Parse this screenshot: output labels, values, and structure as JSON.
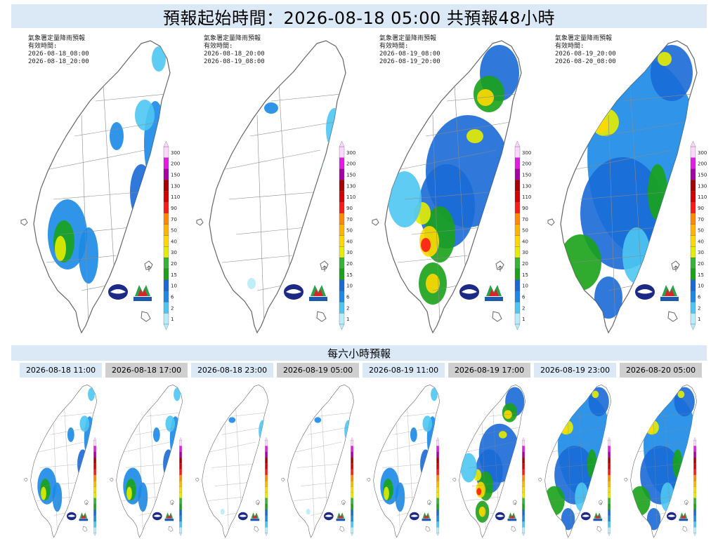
{
  "header": {
    "title": "預報起始時間：2026-08-18 05:00  共預報48小時"
  },
  "legend": {
    "levels": [
      "300",
      "200",
      "150",
      "130",
      "110",
      "90",
      "70",
      "50",
      "40",
      "30",
      "20",
      "15",
      "10",
      "6",
      "2",
      "1"
    ],
    "colors": [
      "#fdd5fd",
      "#e51ae5",
      "#a800a8",
      "#a80000",
      "#d60000",
      "#ff1a1a",
      "#ff8a00",
      "#ffb400",
      "#ffd800",
      "#e6ec00",
      "#34b534",
      "#1aa21a",
      "#1a6ad6",
      "#1a8ae6",
      "#4cc6f2",
      "#b8ecfa"
    ]
  },
  "icons": {
    "cwa_logo": "cwa-logo-icon",
    "ncdr_logo": "ncdr-logo-icon"
  },
  "big_maps": [
    {
      "agency": "氣象署定量降雨預報",
      "valid_label": "有效時間:",
      "start": "2026-08-18_08:00",
      "end": "2026-08-18_20:00",
      "intensity": "moderate"
    },
    {
      "agency": "氣象署定量降雨預報",
      "valid_label": "有效時間:",
      "start": "2026-08-18_20:00",
      "end": "2026-08-19_08:00",
      "intensity": "light"
    },
    {
      "agency": "氣象署定量降雨預報",
      "valid_label": "有效時間:",
      "start": "2026-08-19_08:00",
      "end": "2026-08-19_20:00",
      "intensity": "heavy"
    },
    {
      "agency": "氣象署定量降雨預報",
      "valid_label": "有效時間:",
      "start": "2026-08-19_20:00",
      "end": "2026-08-20_08:00",
      "intensity": "widespread"
    }
  ],
  "section": {
    "title": "每六小時預報"
  },
  "small_maps": [
    {
      "label": "2026-08-18 11:00",
      "intensity": "moderate"
    },
    {
      "label": "2026-08-18 17:00",
      "intensity": "moderate"
    },
    {
      "label": "2026-08-18 23:00",
      "intensity": "light"
    },
    {
      "label": "2026-08-19 05:00",
      "intensity": "light"
    },
    {
      "label": "2026-08-19 11:00",
      "intensity": "moderate"
    },
    {
      "label": "2026-08-19 17:00",
      "intensity": "heavy"
    },
    {
      "label": "2026-08-19 23:00",
      "intensity": "widespread"
    },
    {
      "label": "2026-08-20 05:00",
      "intensity": "widespread"
    }
  ]
}
